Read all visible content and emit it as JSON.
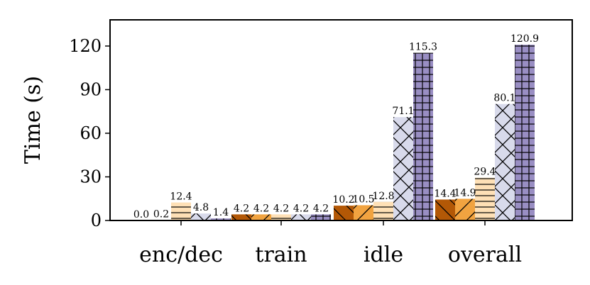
{
  "chart_data": {
    "type": "bar",
    "title": "",
    "xlabel": "",
    "ylabel": "Time (s)",
    "ylim": [
      0,
      138
    ],
    "yticks": [
      0,
      30,
      60,
      90,
      120
    ],
    "grid": false,
    "categories": [
      "enc/dec",
      "train",
      "idle",
      "overall"
    ],
    "series": [
      {
        "values": [
          0.0,
          4.2,
          10.2,
          14.4
        ],
        "labels": [
          "0.0",
          "4.2",
          "10.2",
          "14.4"
        ],
        "color": "#b35806",
        "hatch": "backslash"
      },
      {
        "values": [
          0.2,
          4.2,
          10.5,
          14.9
        ],
        "labels": [
          "0.2",
          "4.2",
          "10.5",
          "14.9"
        ],
        "color": "#f1a340",
        "hatch": "slash"
      },
      {
        "values": [
          12.4,
          4.2,
          12.8,
          29.4
        ],
        "labels": [
          "12.4",
          "4.2",
          "12.8",
          "29.4"
        ],
        "color": "#fee0b6",
        "hatch": "horizontal"
      },
      {
        "values": [
          4.8,
          4.2,
          71.1,
          80.1
        ],
        "labels": [
          "4.8",
          "4.2",
          "71.1",
          "80.1"
        ],
        "color": "#d8daeb",
        "hatch": "cross"
      },
      {
        "values": [
          1.4,
          4.2,
          115.3,
          120.9
        ],
        "labels": [
          "1.4",
          "4.2",
          "115.3",
          "120.9"
        ],
        "color": "#998ec3",
        "hatch": "grid"
      }
    ]
  }
}
